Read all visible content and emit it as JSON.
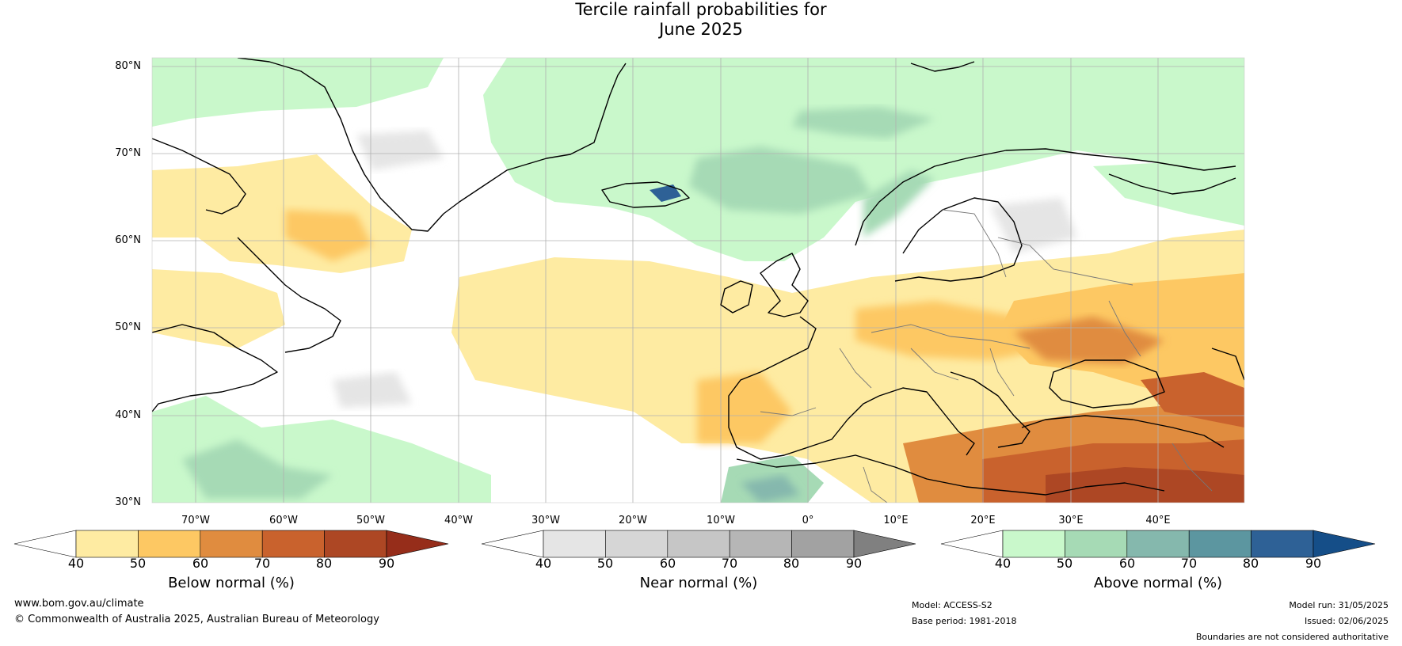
{
  "title": {
    "line1": "Tercile rainfall probabilities for",
    "line2": "June 2025"
  },
  "map": {
    "extent": {
      "lon": [
        -80,
        45
      ],
      "lat": [
        30,
        80.5
      ]
    },
    "lat_ticks": [
      "80°N",
      "70°N",
      "60°N",
      "50°N",
      "40°N",
      "30°N"
    ],
    "lon_ticks": [
      "70°W",
      "60°W",
      "50°W",
      "40°W",
      "30°W",
      "20°W",
      "10°W",
      "0°",
      "10°E",
      "20°E",
      "30°E",
      "40°E"
    ],
    "gridlines": true
  },
  "colorbars": [
    {
      "id": "below",
      "title": "Below normal (%)",
      "ticks": [
        "40",
        "50",
        "60",
        "70",
        "80",
        "90"
      ],
      "colors": [
        "#ffffff",
        "#feeba2",
        "#fdc863",
        "#e08c3f",
        "#c9622d",
        "#ad4724",
        "#962d1a"
      ]
    },
    {
      "id": "near",
      "title": "Near normal (%)",
      "ticks": [
        "40",
        "50",
        "60",
        "70",
        "80",
        "90"
      ],
      "colors": [
        "#ffffff",
        "#e5e5e5",
        "#d6d6d6",
        "#c6c6c6",
        "#b6b6b6",
        "#a2a2a2",
        "#808080"
      ]
    },
    {
      "id": "above",
      "title": "Above normal (%)",
      "ticks": [
        "40",
        "50",
        "60",
        "70",
        "80",
        "90"
      ],
      "colors": [
        "#ffffff",
        "#c9f8cb",
        "#a6dab5",
        "#85b8ad",
        "#5c96a0",
        "#2e6196",
        "#154e88"
      ]
    }
  ],
  "footer": {
    "website": "www.bom.gov.au/climate",
    "copyright": "© Commonwealth of Australia 2025, Australian Bureau of Meteorology",
    "model": "Model: ACCESS-S2",
    "base_period": "Base period: 1981-2018",
    "model_run": "Model run: 31/05/2025",
    "issued": "Issued: 02/06/2025",
    "disclaimer": "Boundaries are not considered authoritative"
  }
}
